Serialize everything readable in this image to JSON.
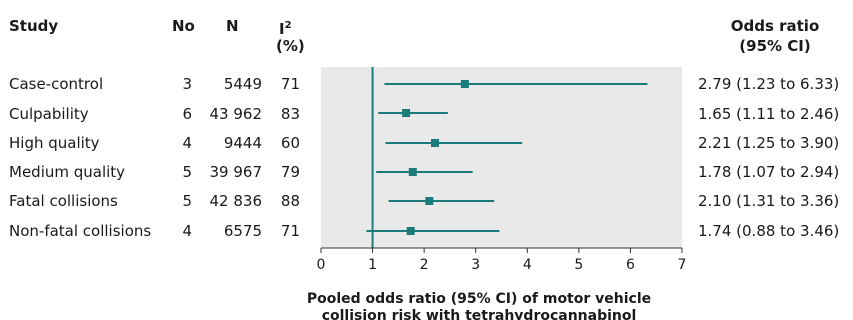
{
  "columns": {
    "study": "Study",
    "no": "No",
    "n": "N",
    "i2_main": "I",
    "i2_sup": "2",
    "i2_unit": "(%)",
    "or_line1": "Odds ratio",
    "or_line2": "(95% CI)"
  },
  "rows": [
    {
      "study": "Case-control",
      "no": "3",
      "n": "5449",
      "i2": "71",
      "or_text": "2.79 (1.23 to 6.33)"
    },
    {
      "study": "Culpability",
      "no": "6",
      "n": "43 962",
      "i2": "83",
      "or_text": "1.65 (1.11 to 2.46)"
    },
    {
      "study": "High quality",
      "no": "4",
      "n": "9444",
      "i2": "60",
      "or_text": "2.21 (1.25 to 3.90)"
    },
    {
      "study": "Medium quality",
      "no": "5",
      "n": "39 967",
      "i2": "79",
      "or_text": "1.78 (1.07 to 2.94)"
    },
    {
      "study": "Fatal collisions",
      "no": "5",
      "n": "42 836",
      "i2": "88",
      "or_text": "2.10 (1.31 to 3.36)"
    },
    {
      "study": "Non-fatal collisions",
      "no": "4",
      "n": "6575",
      "i2": "71",
      "or_text": "1.74 (0.88 to 3.46)"
    }
  ],
  "chart_data": {
    "type": "forest",
    "categories": [
      "Case-control",
      "Culpability",
      "High quality",
      "Medium quality",
      "Fatal collisions",
      "Non-fatal collisions"
    ],
    "estimates": [
      2.79,
      1.65,
      2.21,
      1.78,
      2.1,
      1.74
    ],
    "lower": [
      1.23,
      1.11,
      1.25,
      1.07,
      1.31,
      0.88
    ],
    "upper": [
      6.33,
      2.46,
      3.9,
      2.94,
      3.36,
      3.46
    ],
    "reference_line": 1,
    "xlim": [
      0,
      7
    ],
    "xticks": [
      "0",
      "1",
      "2",
      "3",
      "4",
      "5",
      "6",
      "7"
    ],
    "xlabel_line1": "Pooled odds ratio (95% CI) of motor vehicle",
    "xlabel_line2": "collision risk with tetrahydrocannabinol",
    "grid": false,
    "colors": {
      "marker": "#1b7b7b",
      "panel": "#e9e9e9"
    }
  }
}
